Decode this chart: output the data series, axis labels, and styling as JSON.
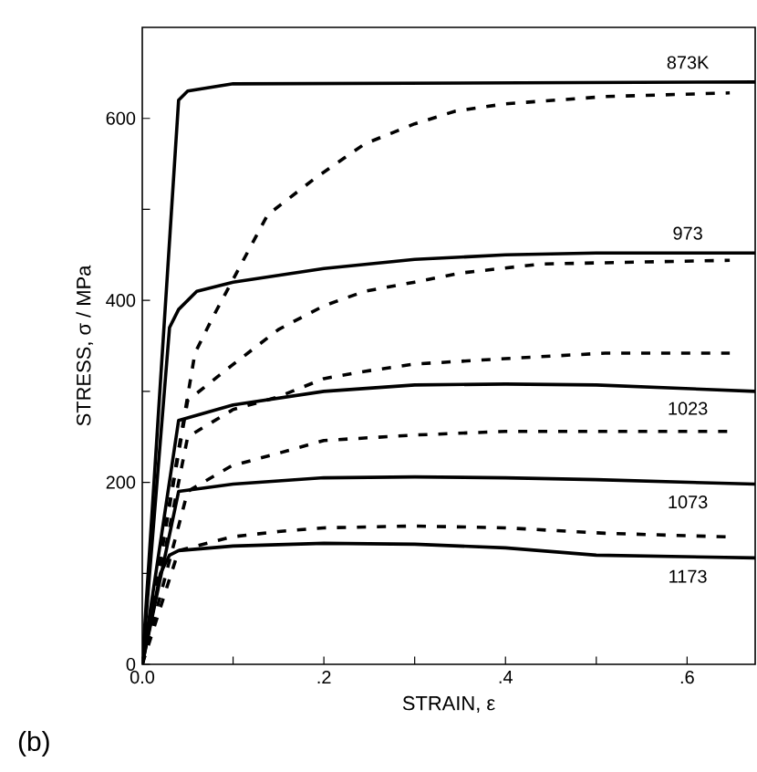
{
  "chart_data": {
    "type": "line",
    "xlabel": "STRAIN, ε",
    "ylabel": "STRESS,  σ / MPa",
    "xlim": [
      0,
      0.675
    ],
    "ylim": [
      0,
      700
    ],
    "xticks": [
      {
        "value": 0,
        "label": "0.0"
      },
      {
        "value": 0.1,
        "label": null
      },
      {
        "value": 0.2,
        "label": ".2"
      },
      {
        "value": 0.3,
        "label": null
      },
      {
        "value": 0.4,
        "label": ".4"
      },
      {
        "value": 0.5,
        "label": null
      },
      {
        "value": 0.6,
        "label": ".6"
      }
    ],
    "yticks": [
      0,
      {
        "value": 100,
        "label": null
      },
      200,
      {
        "value": 300,
        "label": null
      },
      400,
      {
        "value": 500,
        "label": null
      },
      600
    ],
    "series": [
      {
        "name": "873K",
        "color": "#000000",
        "line_style": "solid",
        "x": [
          0,
          0.04,
          0.05,
          0.1,
          0.675
        ],
        "values": [
          0,
          620,
          630,
          638,
          640
        ]
      },
      {
        "color": "#000000",
        "line_style": "dashed",
        "x": [
          0,
          0.058,
          0.078,
          0.138,
          0.19,
          0.245,
          0.3,
          0.345,
          0.4,
          0.51,
          0.647
        ],
        "values": [
          0,
          342,
          382,
          494,
          534,
          572,
          594,
          608,
          616,
          624,
          628
        ]
      },
      {
        "name": "973",
        "color": "#000000",
        "line_style": "solid",
        "x": [
          0,
          0.03,
          0.04,
          0.06,
          0.1,
          0.2,
          0.3,
          0.4,
          0.5,
          0.675
        ],
        "values": [
          0,
          370,
          390,
          410,
          420,
          435,
          445,
          450,
          452,
          452
        ]
      },
      {
        "color": "#000000",
        "line_style": "dashed",
        "x": [
          0,
          0.05,
          0.098,
          0.15,
          0.2,
          0.245,
          0.3,
          0.35,
          0.44,
          0.647
        ],
        "values": [
          0,
          290,
          328,
          368,
          394,
          410,
          420,
          430,
          440,
          444
        ]
      },
      {
        "name": "1023",
        "color": "#000000",
        "line_style": "solid",
        "x": [
          0,
          0.04,
          0.1,
          0.2,
          0.3,
          0.4,
          0.5,
          0.675
        ],
        "values": [
          0,
          268,
          285,
          300,
          307,
          308,
          307,
          300
        ]
      },
      {
        "color": "#000000",
        "line_style": "dashed",
        "x": [
          0,
          0.05,
          0.1,
          0.15,
          0.2,
          0.245,
          0.3,
          0.4,
          0.51,
          0.647
        ],
        "values": [
          0,
          250,
          280,
          294,
          314,
          322,
          330,
          336,
          342,
          342
        ]
      },
      {
        "name": "1073",
        "color": "#000000",
        "line_style": "solid",
        "x": [
          0,
          0.04,
          0.1,
          0.2,
          0.3,
          0.4,
          0.5,
          0.675
        ],
        "values": [
          0,
          190,
          198,
          205,
          206,
          205,
          203,
          198
        ]
      },
      {
        "color": "#000000",
        "line_style": "dashed",
        "x": [
          0,
          0.05,
          0.098,
          0.15,
          0.2,
          0.3,
          0.4,
          0.55,
          0.647
        ],
        "values": [
          0,
          190,
          218,
          232,
          246,
          252,
          256,
          256,
          256
        ]
      },
      {
        "name": "1173",
        "color": "#000000",
        "line_style": "solid",
        "x": [
          0,
          0.02,
          0.03,
          0.04,
          0.1,
          0.2,
          0.3,
          0.4,
          0.5,
          0.675
        ],
        "values": [
          0,
          100,
          120,
          125,
          130,
          133,
          132,
          128,
          120,
          117
        ]
      },
      {
        "color": "#000000",
        "line_style": "dashed",
        "x": [
          0,
          0.04,
          0.098,
          0.15,
          0.2,
          0.3,
          0.4,
          0.51,
          0.647
        ],
        "values": [
          0,
          125,
          140,
          146,
          150,
          152,
          150,
          144,
          140
        ]
      }
    ],
    "annotations": [
      "(b)"
    ]
  }
}
